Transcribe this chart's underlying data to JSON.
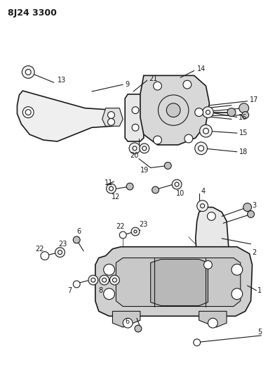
{
  "title": "8J24 3300",
  "bg_color": "#ffffff",
  "line_color": "#000000",
  "fig_width": 3.82,
  "fig_height": 5.33,
  "dpi": 100
}
